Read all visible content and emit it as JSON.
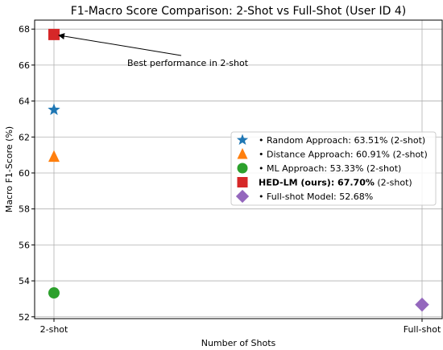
{
  "chart_data": {
    "type": "scatter",
    "title": "F1-Macro Score Comparison: 2-Shot vs Full-Shot (User ID 4)",
    "xlabel": "Number of Shots",
    "ylabel": "Macro F1-Score (%)",
    "categories": [
      "2-shot",
      "Full-shot"
    ],
    "ylim": [
      51.9,
      68.5
    ],
    "yticks": [
      52,
      54,
      56,
      58,
      60,
      62,
      64,
      66,
      68
    ],
    "grid": true,
    "legend_position": "center-right",
    "series": [
      {
        "name": "Random Approach",
        "x": "2-shot",
        "value": 63.51,
        "marker": "star",
        "color": "#1f77b4",
        "legend_label": "• Random Approach: 63.51% (2-shot)"
      },
      {
        "name": "Distance Approach",
        "x": "2-shot",
        "value": 60.91,
        "marker": "triangle",
        "color": "#ff7f0e",
        "legend_label": "• Distance Approach: 60.91% (2-shot)"
      },
      {
        "name": "ML Approach",
        "x": "2-shot",
        "value": 53.33,
        "marker": "circle",
        "color": "#2ca02c",
        "legend_label": "• ML Approach: 53.33% (2-shot)"
      },
      {
        "name": "HED-LM (ours)",
        "x": "2-shot",
        "value": 67.7,
        "marker": "square",
        "color": "#d62728",
        "legend_label_bold": "HED-LM (ours):  67.70%",
        "legend_label_rest": " (2-shot)"
      },
      {
        "name": "Full-shot Model",
        "x": "Full-shot",
        "value": 52.68,
        "marker": "diamond",
        "color": "#9467bd",
        "legend_label": "• Full-shot Model: 52.68%"
      }
    ],
    "annotation": {
      "text": "Best performance in 2-shot",
      "target_series": 3
    }
  }
}
